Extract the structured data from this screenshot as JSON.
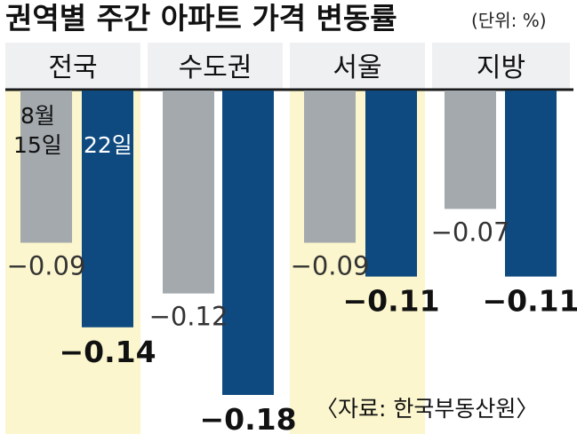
{
  "chart_data": {
    "type": "bar",
    "title": "권역별 주간 아파트 가격 변동률",
    "unit_note": "(단위: %)",
    "categories": [
      "전국",
      "수도권",
      "서울",
      "지방"
    ],
    "series": [
      {
        "name": "8월 15일",
        "values": [
          -0.09,
          -0.12,
          -0.09,
          -0.07
        ],
        "labels": [
          "−0.09",
          "−0.12",
          "−0.09",
          "−0.07"
        ]
      },
      {
        "name": "22일",
        "values": [
          -0.14,
          -0.18,
          -0.11,
          -0.11
        ],
        "labels": [
          "−0.14",
          "−0.18",
          "−0.11",
          "−0.11"
        ]
      }
    ],
    "legend": {
      "gray_line1": "8월",
      "gray_line2": "15일",
      "blue": "22일",
      "placement": "inside-first-bars"
    },
    "ylim": [
      -0.18,
      0
    ],
    "highlighted_categories": [
      "전국",
      "서울"
    ],
    "source": "〈자료: 한국부동산원〉",
    "colors": {
      "gray_bar": "#a3a9ad",
      "blue_bar": "#0e4a80",
      "highlight": "#fbf6cd",
      "baseline": "#1a1a1a",
      "header_band": "#eef0f2"
    }
  }
}
